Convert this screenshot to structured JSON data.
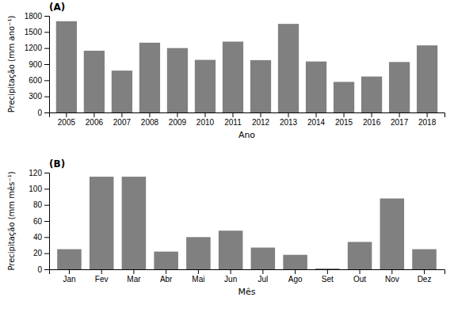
{
  "chart_data": [
    {
      "type": "bar",
      "title": "(A)",
      "categories": [
        "2005",
        "2006",
        "2007",
        "2008",
        "2009",
        "2010",
        "2011",
        "2012",
        "2013",
        "2014",
        "2015",
        "2016",
        "2017",
        "2018"
      ],
      "values": [
        1700,
        1150,
        780,
        1300,
        1200,
        980,
        1320,
        975,
        1650,
        950,
        570,
        670,
        940,
        1250
      ],
      "color": "#808080",
      "xlabel": "Ano",
      "ylabel": "Precipitação (mm ano⁻¹)",
      "ylim": [
        0,
        1800
      ],
      "yticks": [
        0,
        300,
        600,
        900,
        1200,
        1500,
        1800
      ],
      "grid": false
    },
    {
      "type": "bar",
      "title": "(B)",
      "categories": [
        "Jan",
        "Fev",
        "Mar",
        "Abr",
        "Mai",
        "Jun",
        "Jul",
        "Ago",
        "Set",
        "Out",
        "Nov",
        "Dez"
      ],
      "values": [
        25,
        115,
        115,
        22,
        40,
        48,
        27,
        18,
        1,
        34,
        88,
        25
      ],
      "color": "#808080",
      "xlabel": "Mês",
      "ylabel": "Precipitação (mm mês⁻¹)",
      "ylim": [
        0,
        120
      ],
      "yticks": [
        0,
        20,
        40,
        60,
        80,
        100,
        120
      ],
      "grid": false
    }
  ]
}
